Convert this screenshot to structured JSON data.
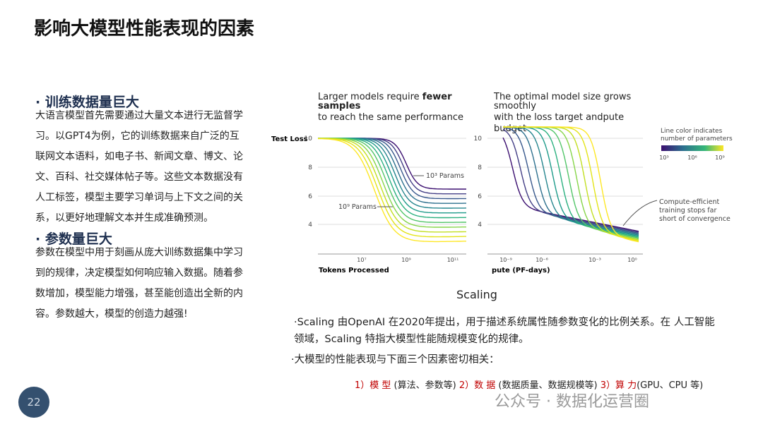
{
  "slide": {
    "title": "影响大模型性能表现的因素",
    "page_number": "22"
  },
  "left": {
    "sections": [
      {
        "heading": "· 训练数据量巨大",
        "body": "大语言模型首先需要通过大量文本进行无监督学习。以GPT4为例，它的训练数据来自广泛的互联网文本语料，如电子书、新闻文章、博文、论文、百科、社交媒体帖子等。这些文本数据没有人工标签，模型主要学习单词与上下文之间的关系，以更好地理解文本并生成准确预测。"
      },
      {
        "heading": "· 参数量巨大",
        "body": "参数在模型中用于刻画从庞大训练数据集中学习到的规律，决定模型如何响应输入数据。随着参数增加，模型能力增强，甚至能创造出全新的内容。参数越大，模型的创造力越强!"
      }
    ]
  },
  "figure": {
    "left_panel": {
      "title": [
        "Larger models require ",
        "fewer",
        "samples",
        "to reach the same performance"
      ],
      "y_label": "Test Loss",
      "yticks": [
        "10",
        "8",
        "6",
        "4"
      ],
      "xticks": [
        "10⁷",
        "10⁹",
        "10¹¹"
      ],
      "x_label": "Tokens Processed",
      "annotations": [
        "10³ Params",
        "10⁹ Params"
      ]
    },
    "right_panel": {
      "title": [
        "The optimal model size grows",
        "smoothly",
        "with the loss target andpute",
        "budget"
      ],
      "yticks": [
        "10",
        "8",
        "6",
        "4"
      ],
      "xticks": [
        "10⁻⁹",
        "10⁻⁶",
        "10⁻³",
        "10⁰"
      ],
      "x_label": "pute (PF-days)",
      "legend_title": [
        "Line color indicates",
        "number of parameters"
      ],
      "legend_ticks": [
        "10³",
        "10⁶",
        "10⁹"
      ],
      "annotation": [
        "Compute-efficient",
        "training stops far",
        "short of convergence"
      ]
    },
    "caption": "Scaling"
  },
  "notes": [
    "·Scaling  由OpenAI 在2020年提出，用于描述系统属性随参数变化的比例关系。在 人工智能领域，Scaling  特指大模型性能随规模变化的规律。",
    "·大模型的性能表现与下面三个因素密切相关："
  ],
  "factors": [
    {
      "label": "1）模 型",
      "detail": "(算法、参数等)"
    },
    {
      "label": "2）数 据",
      "detail": "(数据质量、数据规模等)"
    },
    {
      "label": "3）算 力",
      "detail": "(GPU、CPU 等)"
    }
  ],
  "watermark": "公众号 · 数据化运营圈"
}
